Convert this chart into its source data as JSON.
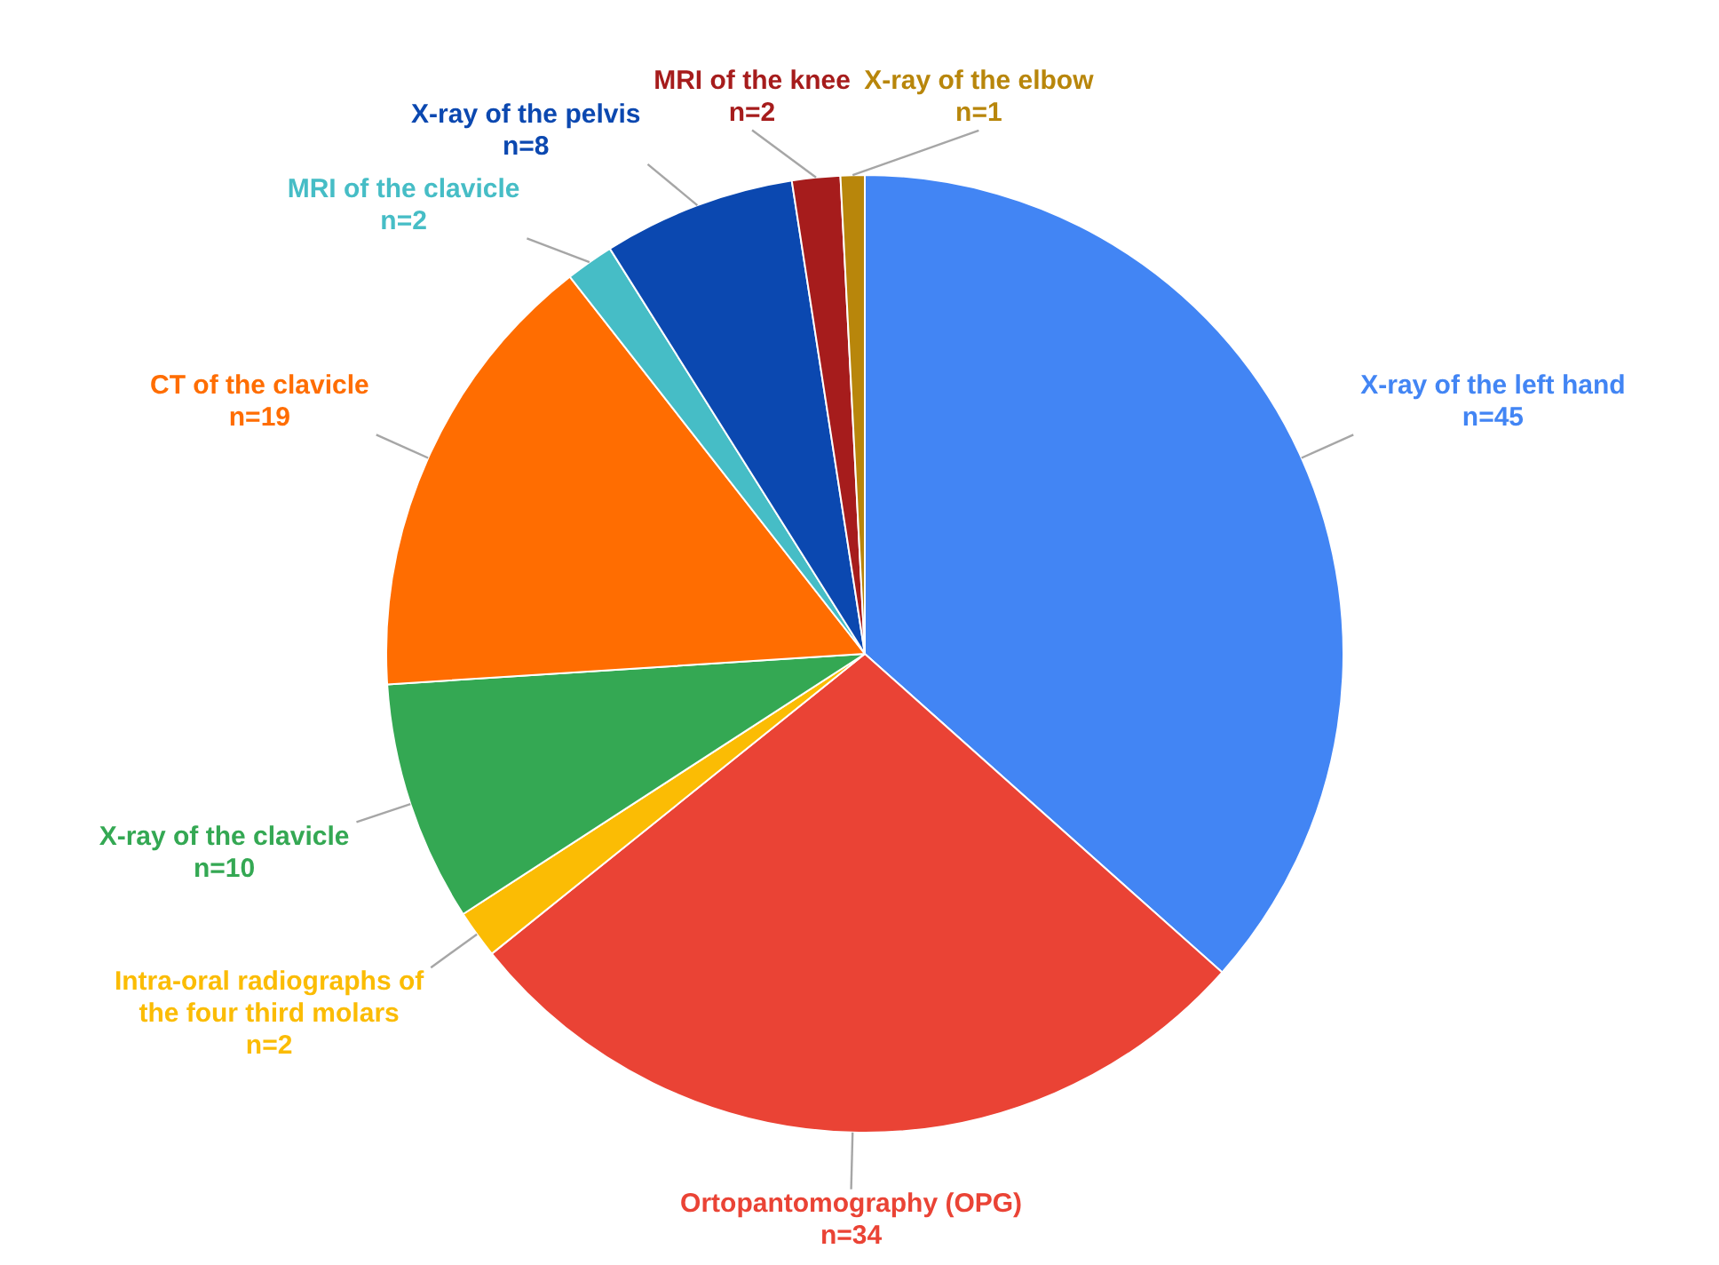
{
  "chart_data": {
    "type": "pie",
    "categories": [
      "X-ray of the left hand",
      "Ortopantomography (OPG)",
      "Intra-oral radiographs of the four third molars",
      "X-ray of the clavicle",
      "CT of the clavicle",
      "MRI of the clavicle",
      "X-ray of the pelvis",
      "MRI of the knee",
      "X-ray of the elbow"
    ],
    "values": [
      45,
      34,
      2,
      10,
      19,
      2,
      8,
      2,
      1
    ],
    "colors": [
      "#4285f4",
      "#ea4335",
      "#fbbc04",
      "#34a853",
      "#ff6d01",
      "#46bdc6",
      "#0b48b0",
      "#a61c1c",
      "#b8860b"
    ],
    "value_labels": [
      "n=45",
      "n=34",
      "n=2",
      "n=10",
      "n=19",
      "n=2",
      "n=8",
      "n=2",
      "n=1"
    ]
  }
}
